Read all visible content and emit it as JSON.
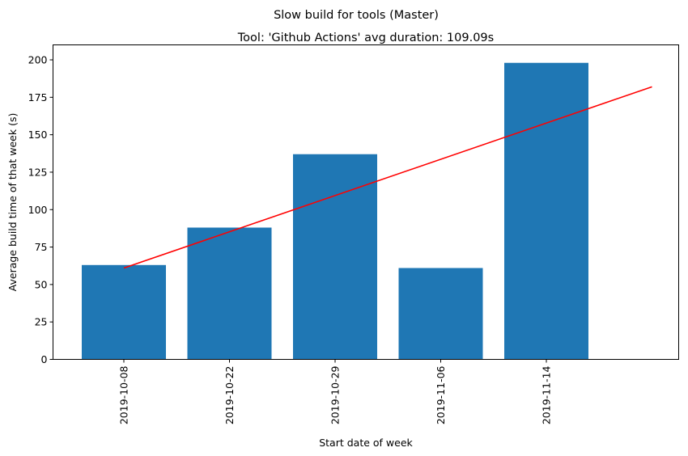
{
  "suptitle": "Slow build for tools (Master)",
  "chart_data": {
    "type": "bar",
    "title": "Tool: 'Github Actions' avg duration: 109.09s",
    "xlabel": "Start date of week",
    "ylabel": "Average build time of that week (s)",
    "categories": [
      "2019-10-08",
      "2019-10-22",
      "2019-10-29",
      "2019-11-06",
      "2019-11-14"
    ],
    "values": [
      63,
      88,
      137,
      61,
      198
    ],
    "ylim": [
      0,
      210
    ],
    "yticks": [
      "0",
      "25",
      "50",
      "75",
      "100",
      "125",
      "150",
      "175",
      "200"
    ],
    "bar_color": "#1f77b4",
    "trendline": {
      "color": "#ff0000",
      "start_value": 61,
      "end_value": 182
    },
    "grid": false,
    "legend": "none"
  }
}
